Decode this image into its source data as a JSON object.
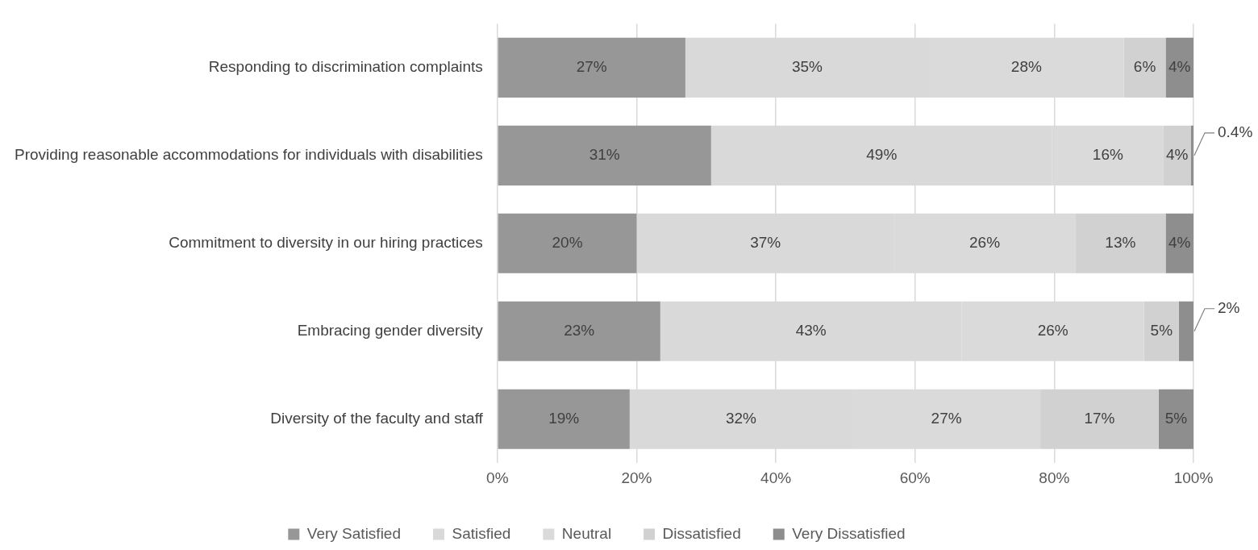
{
  "chart_data": {
    "type": "bar",
    "orientation": "horizontal",
    "stacked": true,
    "categories": [
      "Responding to discrimination complaints",
      "Providing reasonable accommodations for individuals with disabilities",
      "Commitment to diversity in our hiring practices",
      "Embracing gender diversity",
      "Diversity of the faculty and staff"
    ],
    "series": [
      {
        "name": "Very Satisfied",
        "color": "#979797",
        "values": [
          27,
          30.7,
          20,
          23.4,
          19
        ],
        "value_labels": [
          "27%",
          "31%",
          "20%",
          "23%",
          "19%"
        ]
      },
      {
        "name": "Satisfied",
        "color": "#d9d9d9",
        "values": [
          35,
          49,
          37,
          43.3,
          32
        ],
        "value_labels": [
          "35%",
          "49%",
          "37%",
          "43%",
          "32%"
        ]
      },
      {
        "name": "Neutral",
        "color": "#dadada",
        "values": [
          28,
          16,
          26,
          26.2,
          27
        ],
        "value_labels": [
          "28%",
          "16%",
          "26%",
          "26%",
          "27%"
        ]
      },
      {
        "name": "Dissatisfied",
        "color": "#d1d1d1",
        "values": [
          6,
          3.9,
          13,
          5,
          17
        ],
        "value_labels": [
          "6%",
          "4%",
          "13%",
          "5%",
          "17%"
        ]
      },
      {
        "name": "Very Dissatisfied",
        "color": "#8e8e8e",
        "values": [
          4,
          0.4,
          4,
          2.1,
          5
        ],
        "value_labels": [
          "4%",
          "0.4%",
          "4%",
          "2%",
          "5%"
        ]
      }
    ],
    "xlim": [
      0,
      100
    ],
    "xticks": [
      {
        "value": 0,
        "label": "0%"
      },
      {
        "value": 20,
        "label": "20%"
      },
      {
        "value": 40,
        "label": "40%"
      },
      {
        "value": 60,
        "label": "60%"
      },
      {
        "value": 80,
        "label": "80%"
      },
      {
        "value": 100,
        "label": "100%"
      }
    ],
    "grid": "x",
    "legend": "bottom"
  }
}
